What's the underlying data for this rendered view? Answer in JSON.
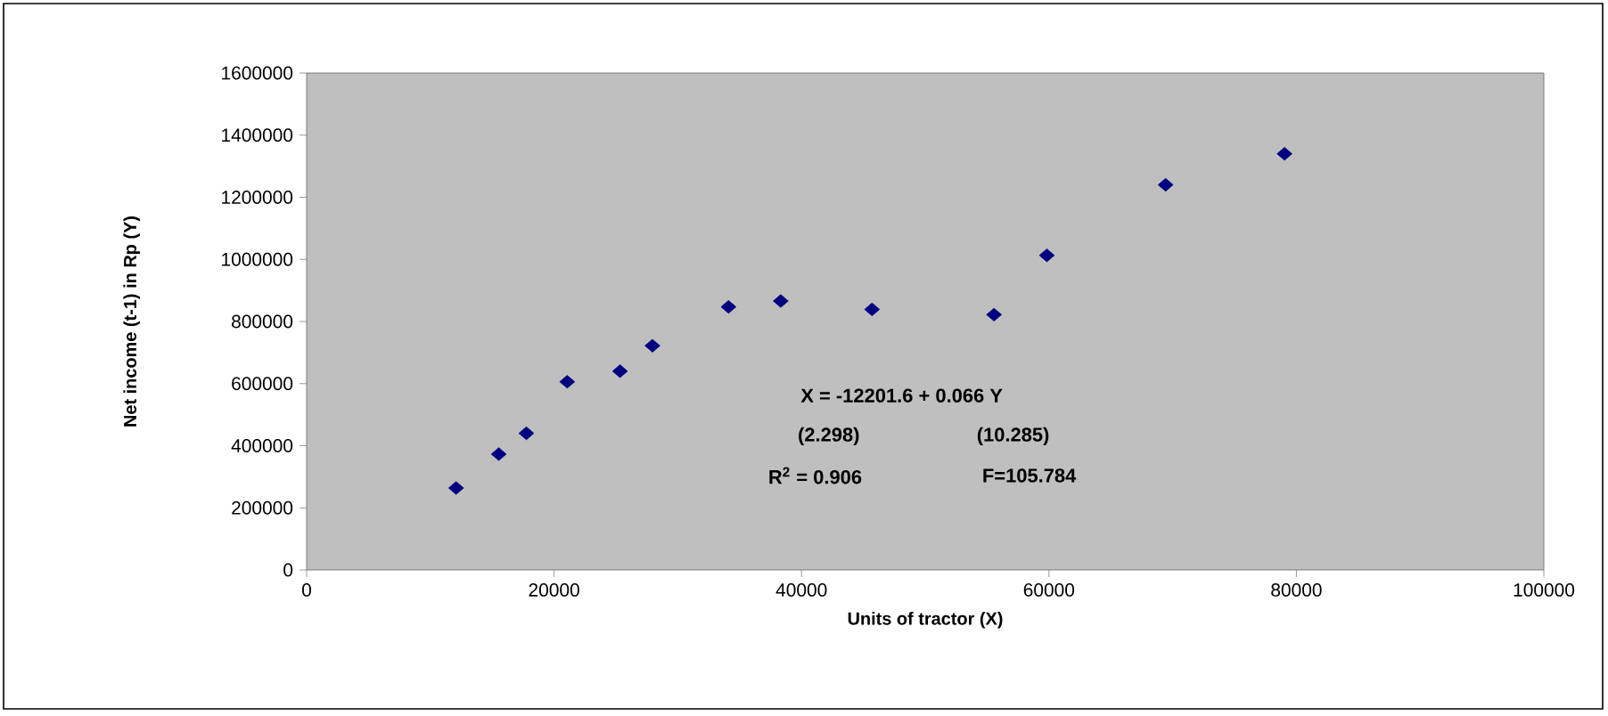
{
  "chart_data": {
    "type": "scatter",
    "xlabel": "Units of tractor (X)",
    "ylabel": "Net income (t-1) in Rp (Y)",
    "x": [
      12080,
      15530,
      17760,
      21060,
      25330,
      27950,
      34100,
      38320,
      45700,
      55560,
      59830,
      69430,
      79040
    ],
    "series": [
      {
        "color": "#000080",
        "values": [
          264000,
          373000,
          440000,
          606000,
          640000,
          722000,
          847000,
          866000,
          839000,
          822000,
          1013000,
          1240000,
          1340000
        ]
      }
    ],
    "xlim": [
      0,
      100000
    ],
    "xticks": [
      0,
      20000,
      40000,
      60000,
      80000,
      100000
    ],
    "ylim": [
      0,
      1600000
    ],
    "yticks": [
      0,
      200000,
      400000,
      600000,
      800000,
      1000000,
      1200000,
      1400000,
      1600000
    ],
    "marker": "diamond",
    "grid": false,
    "annotations": [
      "X = -12201.6 + 0.066 Y",
      "(2.298)",
      "(10.285)",
      "R$^{2}$ = 0.906",
      "F=105.784"
    ]
  }
}
